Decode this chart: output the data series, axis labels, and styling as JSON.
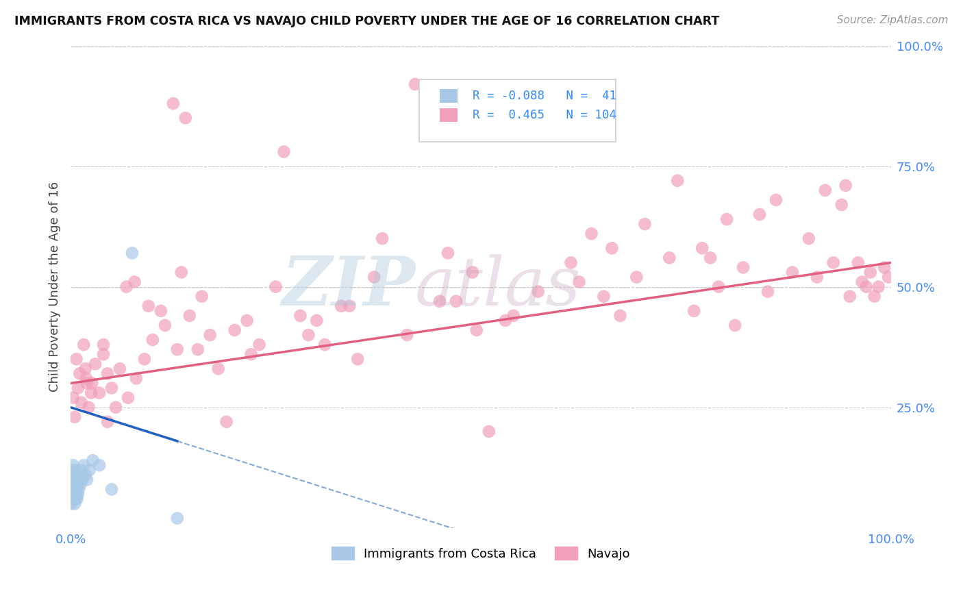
{
  "title": "IMMIGRANTS FROM COSTA RICA VS NAVAJO CHILD POVERTY UNDER THE AGE OF 16 CORRELATION CHART",
  "source": "Source: ZipAtlas.com",
  "ylabel": "Child Poverty Under the Age of 16",
  "xlim": [
    0,
    1
  ],
  "ylim": [
    0,
    1
  ],
  "blue_color": "#a8c8e8",
  "pink_color": "#f0a0b8",
  "blue_line_color": "#2060c0",
  "pink_line_color": "#e06080",
  "background_color": "#ffffff",
  "grid_color": "#c8c8c8",
  "costa_rica_x": [
    0.001,
    0.001,
    0.002,
    0.002,
    0.002,
    0.003,
    0.003,
    0.003,
    0.003,
    0.004,
    0.004,
    0.004,
    0.005,
    0.005,
    0.005,
    0.005,
    0.006,
    0.006,
    0.006,
    0.007,
    0.007,
    0.007,
    0.008,
    0.008,
    0.009,
    0.009,
    0.01,
    0.01,
    0.011,
    0.012,
    0.013,
    0.014,
    0.016,
    0.018,
    0.02,
    0.023,
    0.027,
    0.035,
    0.05,
    0.075,
    0.13
  ],
  "costa_rica_y": [
    0.05,
    0.08,
    0.06,
    0.1,
    0.12,
    0.07,
    0.09,
    0.11,
    0.13,
    0.06,
    0.08,
    0.1,
    0.05,
    0.07,
    0.09,
    0.11,
    0.06,
    0.08,
    0.12,
    0.07,
    0.09,
    0.11,
    0.06,
    0.1,
    0.07,
    0.09,
    0.08,
    0.11,
    0.1,
    0.09,
    0.12,
    0.1,
    0.13,
    0.11,
    0.1,
    0.12,
    0.14,
    0.13,
    0.08,
    0.57,
    0.02
  ],
  "navajo_x": [
    0.003,
    0.005,
    0.007,
    0.009,
    0.011,
    0.013,
    0.016,
    0.019,
    0.022,
    0.026,
    0.03,
    0.035,
    0.04,
    0.045,
    0.05,
    0.06,
    0.07,
    0.08,
    0.09,
    0.1,
    0.115,
    0.13,
    0.145,
    0.16,
    0.18,
    0.2,
    0.22,
    0.25,
    0.28,
    0.31,
    0.34,
    0.37,
    0.41,
    0.45,
    0.49,
    0.53,
    0.57,
    0.61,
    0.65,
    0.69,
    0.73,
    0.76,
    0.79,
    0.82,
    0.85,
    0.88,
    0.91,
    0.93,
    0.95,
    0.965,
    0.975,
    0.985,
    0.992,
    0.997,
    0.02,
    0.055,
    0.11,
    0.17,
    0.23,
    0.3,
    0.38,
    0.46,
    0.54,
    0.62,
    0.7,
    0.77,
    0.84,
    0.9,
    0.94,
    0.96,
    0.97,
    0.98,
    0.14,
    0.26,
    0.42,
    0.58,
    0.74,
    0.86,
    0.018,
    0.095,
    0.19,
    0.35,
    0.51,
    0.67,
    0.81,
    0.068,
    0.135,
    0.29,
    0.47,
    0.635,
    0.78,
    0.92,
    0.025,
    0.078,
    0.155,
    0.33,
    0.495,
    0.66,
    0.8,
    0.945,
    0.04,
    0.125,
    0.045,
    0.215
  ],
  "navajo_y": [
    0.27,
    0.23,
    0.35,
    0.29,
    0.32,
    0.26,
    0.38,
    0.31,
    0.25,
    0.3,
    0.34,
    0.28,
    0.36,
    0.22,
    0.29,
    0.33,
    0.27,
    0.31,
    0.35,
    0.39,
    0.42,
    0.37,
    0.44,
    0.48,
    0.33,
    0.41,
    0.36,
    0.5,
    0.44,
    0.38,
    0.46,
    0.52,
    0.4,
    0.47,
    0.53,
    0.43,
    0.49,
    0.55,
    0.48,
    0.52,
    0.56,
    0.45,
    0.5,
    0.54,
    0.49,
    0.53,
    0.52,
    0.55,
    0.48,
    0.51,
    0.53,
    0.5,
    0.54,
    0.52,
    0.3,
    0.25,
    0.45,
    0.4,
    0.38,
    0.43,
    0.6,
    0.57,
    0.44,
    0.51,
    0.63,
    0.58,
    0.65,
    0.6,
    0.67,
    0.55,
    0.5,
    0.48,
    0.85,
    0.78,
    0.92,
    0.82,
    0.72,
    0.68,
    0.33,
    0.46,
    0.22,
    0.35,
    0.2,
    0.44,
    0.42,
    0.5,
    0.53,
    0.4,
    0.47,
    0.61,
    0.56,
    0.7,
    0.28,
    0.51,
    0.37,
    0.46,
    0.41,
    0.58,
    0.64,
    0.71,
    0.38,
    0.88,
    0.32,
    0.43
  ]
}
